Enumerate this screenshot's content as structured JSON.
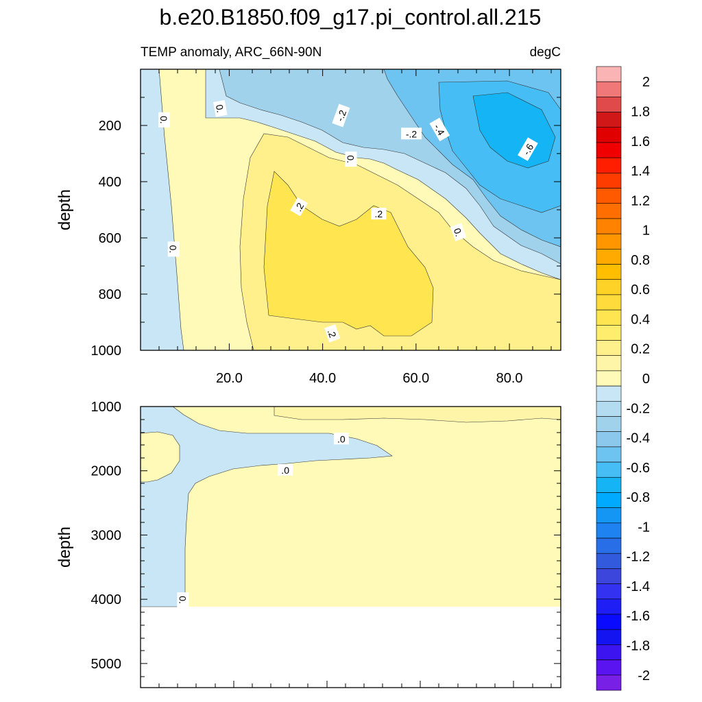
{
  "title": "b.e20.B1850.f09_g17.pi_control.all.215",
  "subtitle_left": "TEMP anomaly, ARC_66N-90N",
  "subtitle_right": "degC",
  "chart_data": [
    {
      "type": "heatmap",
      "panel": "upper",
      "ylabel": "depth",
      "xlim": [
        1,
        91
      ],
      "ylim": [
        1000,
        0
      ],
      "x_ticks": [
        {
          "v": 20,
          "label": "20.0"
        },
        {
          "v": 40,
          "label": "40.0"
        },
        {
          "v": 60,
          "label": "60.0"
        },
        {
          "v": 80,
          "label": "80.0"
        }
      ],
      "y_ticks": [
        {
          "v": 200,
          "label": "200"
        },
        {
          "v": 400,
          "label": "400"
        },
        {
          "v": 600,
          "label": "600"
        },
        {
          "v": 800,
          "label": "800"
        },
        {
          "v": 1000,
          "label": "1000"
        }
      ],
      "contour_labels": [
        {
          "text": "0.",
          "x": 6,
          "y": 180,
          "rot": 90
        },
        {
          "text": "0.",
          "x": 18,
          "y": 140,
          "rot": 80
        },
        {
          "text": "-.2",
          "x": 44,
          "y": 165,
          "rot": -70
        },
        {
          "text": "-.2",
          "x": 59,
          "y": 230,
          "rot": 0
        },
        {
          "text": "-.4",
          "x": 65,
          "y": 215,
          "rot": 60
        },
        {
          "text": "-.6",
          "x": 84,
          "y": 285,
          "rot": -60
        },
        {
          "text": "0.",
          "x": 46,
          "y": 320,
          "rot": 90
        },
        {
          "text": ".2",
          "x": 35,
          "y": 490,
          "rot": -60
        },
        {
          "text": ".2",
          "x": 52,
          "y": 515,
          "rot": 0
        },
        {
          "text": "0.",
          "x": 69,
          "y": 580,
          "rot": 70
        },
        {
          "text": "0.",
          "x": 8,
          "y": 640,
          "rot": 90
        },
        {
          "text": ".2",
          "x": 42,
          "y": 940,
          "rot": 70
        }
      ]
    },
    {
      "type": "heatmap",
      "panel": "lower",
      "ylabel": "depth",
      "xlim": [
        1,
        91
      ],
      "ylim": [
        5375,
        1000
      ],
      "y_ticks": [
        {
          "v": 1000,
          "label": "1000"
        },
        {
          "v": 2000,
          "label": "2000"
        },
        {
          "v": 3000,
          "label": "3000"
        },
        {
          "v": 4000,
          "label": "4000"
        },
        {
          "v": 5000,
          "label": "5000"
        }
      ],
      "contour_labels": [
        {
          "text": ".0",
          "x": 44,
          "y": 1505,
          "rot": 0
        },
        {
          "text": ".0",
          "x": 32,
          "y": 1990,
          "rot": 0
        },
        {
          "text": "0.",
          "x": 10,
          "y": 4010,
          "rot": 90
        }
      ]
    }
  ],
  "colorbar": {
    "labels": [
      "2",
      "1.8",
      "1.6",
      "1.4",
      "1.2",
      "1",
      "0.8",
      "0.6",
      "0.4",
      "0.2",
      "0",
      "-0.2",
      "-0.4",
      "-0.6",
      "-0.8",
      "-1",
      "-1.2",
      "-1.4",
      "-1.6",
      "-1.8",
      "-2"
    ],
    "colors": [
      "#fbb4b4",
      "#f07878",
      "#e04a4a",
      "#d01818",
      "#e00000",
      "#f00000",
      "#ff1e00",
      "#ff3c00",
      "#ff5a00",
      "#ff6e00",
      "#ff8200",
      "#ff9600",
      "#ffaa00",
      "#ffbe00",
      "#ffd228",
      "#ffdc3c",
      "#ffe650",
      "#ffee6e",
      "#fff08c",
      "#fff5a8",
      "#fffab8",
      "#c8e6f5",
      "#b4dcf0",
      "#a0d2ec",
      "#8cc8ec",
      "#6ec4f0",
      "#46bef5",
      "#14b4f5",
      "#00aaff",
      "#1496f5",
      "#1e82f0",
      "#286ee6",
      "#325adc",
      "#3c46dc",
      "#3232f0",
      "#1e1ef5",
      "#0a0aff",
      "#1414f0",
      "#3c14f0",
      "#5a14f0",
      "#7820e6"
    ]
  }
}
